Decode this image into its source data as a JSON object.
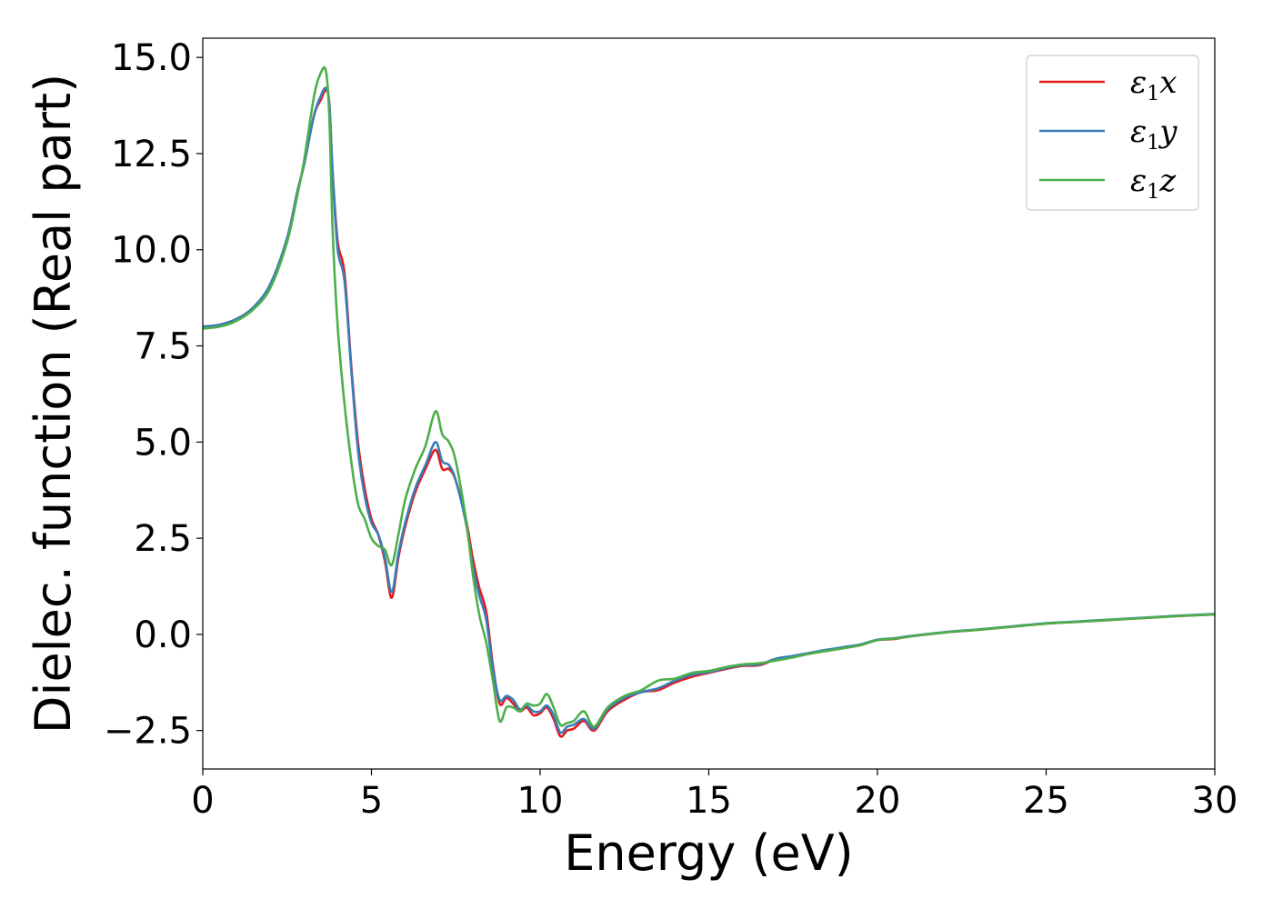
{
  "chart_data": {
    "type": "line",
    "title": "",
    "xlabel": "Energy (eV)",
    "ylabel": "Dielec. function (Real part)",
    "xlim": [
      0,
      30
    ],
    "ylim": [
      -3.5,
      15.5
    ],
    "xticks": [
      0,
      5,
      10,
      15,
      20,
      25,
      30
    ],
    "xtick_labels": [
      "0",
      "5",
      "10",
      "15",
      "20",
      "25",
      "30"
    ],
    "yticks": [
      -2.5,
      0,
      2.5,
      5,
      7.5,
      10,
      12.5,
      15
    ],
    "ytick_labels": [
      "−2.5",
      "0.0",
      "2.5",
      "5.0",
      "7.5",
      "10.0",
      "12.5",
      "15.0"
    ],
    "grid": false,
    "legend_position": "top-right",
    "colors": {
      "x": "#e41a1c",
      "y": "#377eb8",
      "z": "#4daf4a"
    },
    "series": [
      {
        "name": "ε1x",
        "legend_symbol": "ε",
        "legend_sub": "1",
        "legend_suffix": "x",
        "color": "#e41a1c",
        "x": [
          0,
          0.5,
          1.0,
          1.5,
          2.0,
          2.5,
          2.8,
          3.0,
          3.3,
          3.5,
          3.65,
          3.75,
          3.85,
          4.0,
          4.2,
          4.4,
          4.6,
          4.8,
          5.0,
          5.2,
          5.4,
          5.6,
          5.8,
          6.0,
          6.3,
          6.6,
          6.9,
          7.1,
          7.3,
          7.5,
          7.8,
          8.0,
          8.2,
          8.4,
          8.6,
          8.8,
          9.0,
          9.2,
          9.4,
          9.6,
          9.8,
          10.0,
          10.2,
          10.4,
          10.6,
          10.8,
          11.0,
          11.3,
          11.6,
          12.0,
          12.5,
          13.0,
          13.5,
          14.0,
          14.5,
          15.0,
          15.5,
          16.0,
          16.5,
          17.0,
          17.5,
          18.0,
          18.5,
          19.0,
          19.5,
          20.0,
          20.5,
          21.0,
          22.0,
          23.0,
          24.0,
          25.0,
          26.0,
          27.0,
          28.0,
          29.0,
          30.0
        ],
        "y": [
          8.0,
          8.05,
          8.2,
          8.5,
          9.1,
          10.3,
          11.5,
          12.2,
          13.5,
          13.9,
          14.15,
          13.8,
          12.0,
          10.2,
          9.4,
          7.0,
          5.0,
          3.8,
          3.0,
          2.6,
          1.9,
          0.95,
          2.0,
          2.8,
          3.7,
          4.3,
          4.8,
          4.3,
          4.3,
          4.0,
          3.0,
          2.0,
          1.2,
          0.6,
          -0.8,
          -1.8,
          -1.65,
          -1.8,
          -2.0,
          -1.9,
          -2.1,
          -2.05,
          -1.9,
          -2.2,
          -2.65,
          -2.5,
          -2.45,
          -2.25,
          -2.5,
          -2.0,
          -1.7,
          -1.5,
          -1.45,
          -1.25,
          -1.1,
          -1.0,
          -0.9,
          -0.82,
          -0.8,
          -0.65,
          -0.58,
          -0.5,
          -0.42,
          -0.35,
          -0.28,
          -0.15,
          -0.12,
          -0.05,
          0.05,
          0.12,
          0.2,
          0.28,
          0.33,
          0.38,
          0.43,
          0.48,
          0.52
        ]
      },
      {
        "name": "ε1y",
        "legend_symbol": "ε",
        "legend_sub": "1",
        "legend_suffix": "y",
        "color": "#377eb8",
        "x": [
          0,
          0.5,
          1.0,
          1.5,
          2.0,
          2.5,
          2.8,
          3.0,
          3.3,
          3.5,
          3.65,
          3.75,
          3.85,
          4.0,
          4.2,
          4.4,
          4.6,
          4.8,
          5.0,
          5.2,
          5.4,
          5.6,
          5.8,
          6.0,
          6.3,
          6.6,
          6.9,
          7.1,
          7.3,
          7.5,
          7.8,
          8.0,
          8.2,
          8.4,
          8.6,
          8.8,
          9.0,
          9.2,
          9.4,
          9.6,
          9.8,
          10.0,
          10.2,
          10.4,
          10.6,
          10.8,
          11.0,
          11.3,
          11.6,
          12.0,
          12.5,
          13.0,
          13.5,
          14.0,
          14.5,
          15.0,
          15.5,
          16.0,
          16.5,
          17.0,
          17.5,
          18.0,
          18.5,
          19.0,
          19.5,
          20.0,
          20.5,
          21.0,
          22.0,
          23.0,
          24.0,
          25.0,
          26.0,
          27.0,
          28.0,
          29.0,
          30.0
        ],
        "y": [
          8.0,
          8.05,
          8.2,
          8.5,
          9.1,
          10.3,
          11.5,
          12.2,
          13.5,
          14.0,
          14.2,
          13.8,
          12.0,
          10.0,
          9.2,
          6.9,
          4.8,
          3.6,
          2.9,
          2.6,
          2.0,
          1.1,
          2.1,
          2.9,
          3.8,
          4.4,
          5.0,
          4.5,
          4.4,
          4.0,
          2.9,
          1.8,
          1.0,
          0.4,
          -0.9,
          -1.7,
          -1.6,
          -1.7,
          -1.95,
          -1.85,
          -2.0,
          -2.0,
          -1.85,
          -2.1,
          -2.55,
          -2.4,
          -2.35,
          -2.2,
          -2.45,
          -1.95,
          -1.65,
          -1.5,
          -1.4,
          -1.2,
          -1.05,
          -0.98,
          -0.88,
          -0.8,
          -0.78,
          -0.63,
          -0.56,
          -0.48,
          -0.4,
          -0.33,
          -0.26,
          -0.14,
          -0.1,
          -0.04,
          0.06,
          0.13,
          0.21,
          0.29,
          0.34,
          0.39,
          0.44,
          0.49,
          0.53
        ]
      },
      {
        "name": "ε1z",
        "legend_symbol": "ε",
        "legend_sub": "1",
        "legend_suffix": "z",
        "color": "#4daf4a",
        "x": [
          0,
          0.5,
          1.0,
          1.5,
          2.0,
          2.5,
          2.8,
          3.0,
          3.3,
          3.5,
          3.65,
          3.75,
          3.85,
          4.0,
          4.2,
          4.4,
          4.6,
          4.8,
          5.0,
          5.2,
          5.4,
          5.6,
          5.8,
          6.0,
          6.3,
          6.6,
          6.9,
          7.1,
          7.3,
          7.5,
          7.8,
          8.0,
          8.2,
          8.4,
          8.6,
          8.8,
          9.0,
          9.2,
          9.4,
          9.6,
          9.8,
          10.0,
          10.2,
          10.4,
          10.6,
          10.8,
          11.0,
          11.3,
          11.6,
          12.0,
          12.5,
          13.0,
          13.5,
          14.0,
          14.5,
          15.0,
          15.5,
          16.0,
          16.5,
          17.0,
          17.5,
          18.0,
          18.5,
          19.0,
          19.5,
          20.0,
          20.5,
          21.0,
          22.0,
          23.0,
          24.0,
          25.0,
          26.0,
          27.0,
          28.0,
          29.0,
          30.0
        ],
        "y": [
          7.95,
          8.0,
          8.15,
          8.45,
          9.0,
          10.2,
          11.4,
          12.3,
          14.0,
          14.6,
          14.65,
          13.5,
          10.5,
          8.0,
          6.0,
          4.5,
          3.4,
          3.0,
          2.5,
          2.3,
          2.2,
          1.8,
          2.6,
          3.5,
          4.3,
          4.9,
          5.8,
          5.2,
          5.0,
          4.5,
          3.0,
          1.6,
          0.5,
          -0.2,
          -1.2,
          -2.25,
          -1.9,
          -1.9,
          -2.0,
          -1.8,
          -1.85,
          -1.8,
          -1.55,
          -1.9,
          -2.35,
          -2.3,
          -2.25,
          -2.0,
          -2.4,
          -1.9,
          -1.6,
          -1.45,
          -1.2,
          -1.15,
          -1.0,
          -0.95,
          -0.85,
          -0.78,
          -0.75,
          -0.68,
          -0.6,
          -0.5,
          -0.43,
          -0.36,
          -0.28,
          -0.15,
          -0.11,
          -0.05,
          0.05,
          0.12,
          0.2,
          0.28,
          0.33,
          0.38,
          0.43,
          0.48,
          0.52
        ]
      }
    ]
  }
}
